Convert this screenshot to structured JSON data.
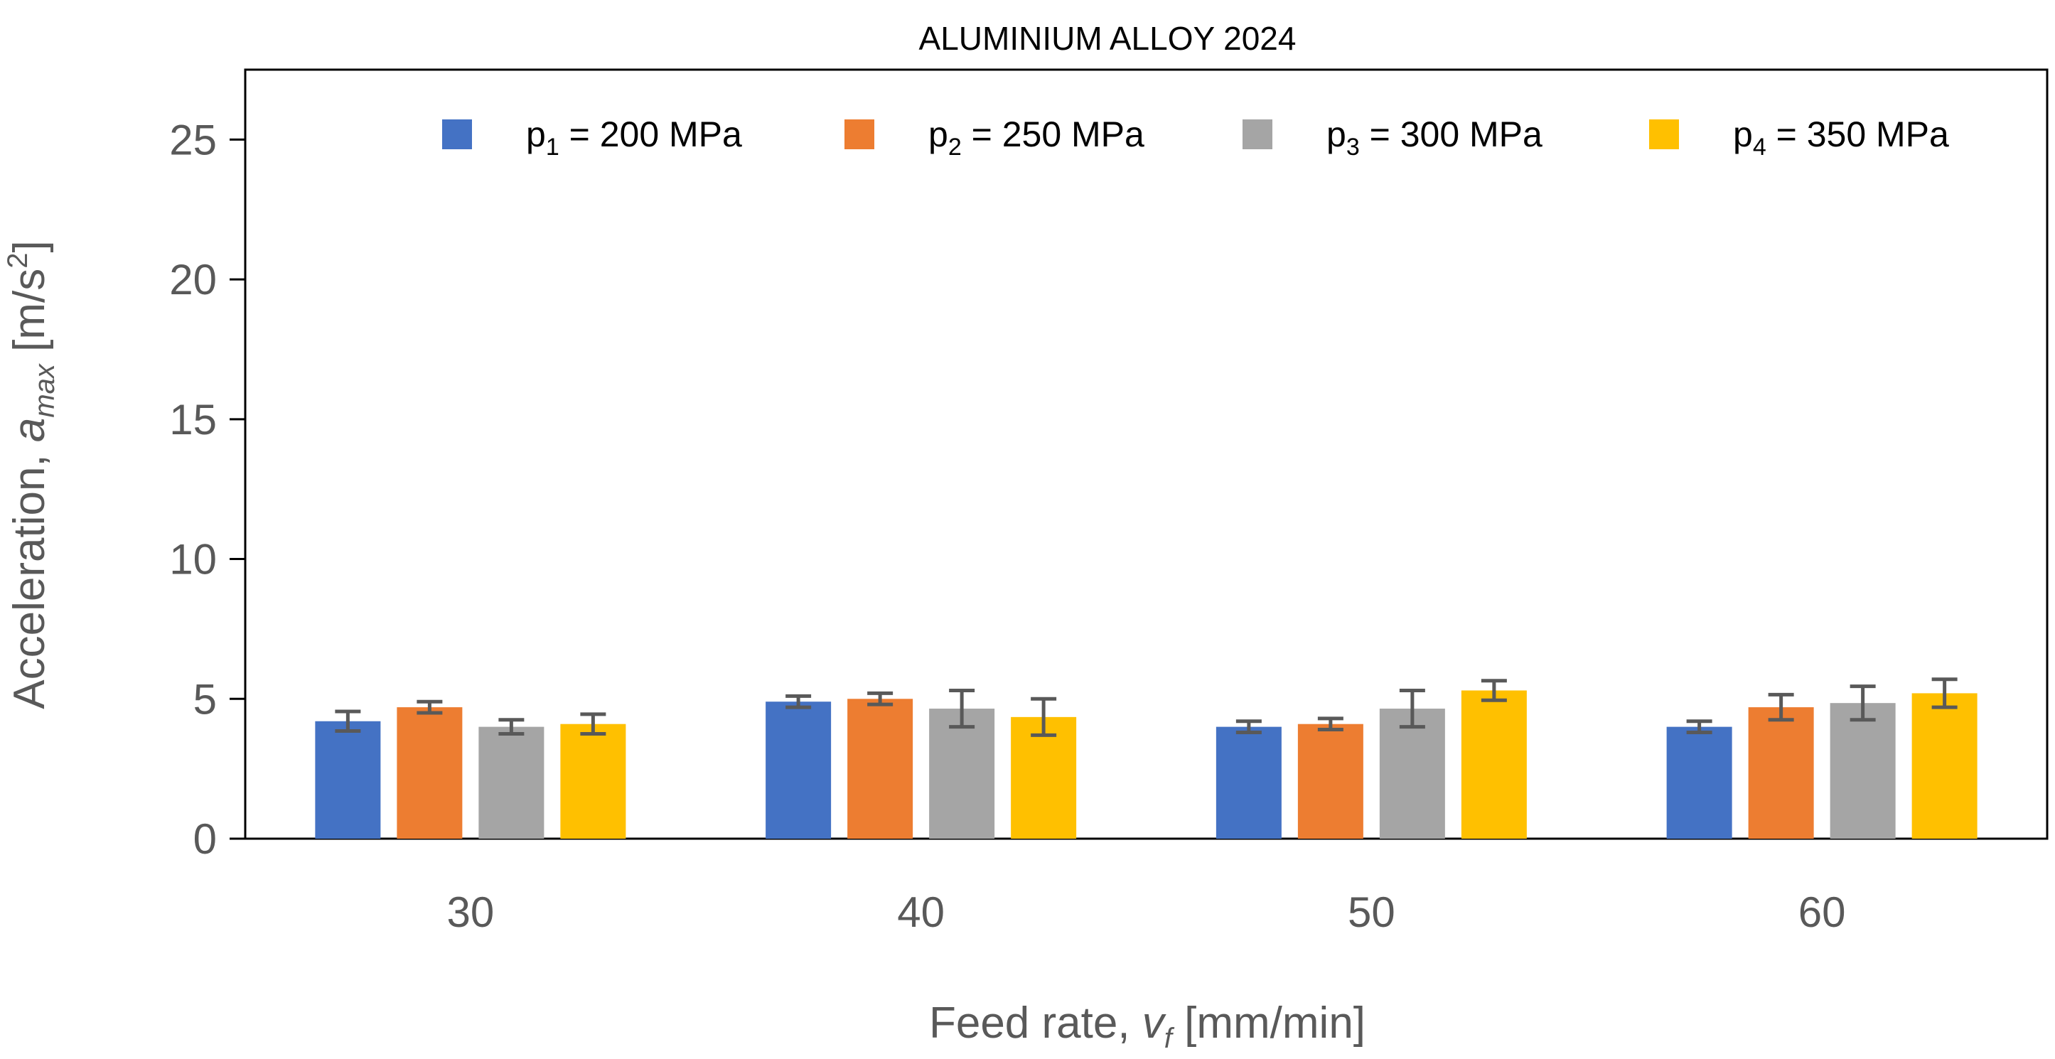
{
  "chart_data": {
    "type": "bar",
    "title": "ALUMINIUM ALLOY 2024",
    "xlabel": {
      "prefix": "Feed rate, ",
      "var": "v",
      "var_sub": "f",
      "suffix": " [mm/min]"
    },
    "ylabel": {
      "prefix": "Acceleration, ",
      "var": "a",
      "var_sub": "max",
      "suffix_a": " [m/s",
      "suffix_sup": "2",
      "suffix_b": "]"
    },
    "categories": [
      "30",
      "40",
      "50",
      "60"
    ],
    "ylim": [
      0,
      27.5
    ],
    "yticks": [
      0,
      5,
      10,
      15,
      20,
      25
    ],
    "grid": false,
    "legend_position": "top",
    "series": [
      {
        "name": "p1 = 200 MPa",
        "legend": {
          "base": "p",
          "sub": "1",
          "rest": " = 200 MPa"
        },
        "color": "#4472C4",
        "values": [
          4.2,
          4.9,
          4.0,
          4.0
        ],
        "errors": [
          0.35,
          0.2,
          0.2,
          0.2
        ]
      },
      {
        "name": "p2 = 250 MPa",
        "legend": {
          "base": "p",
          "sub": "2",
          "rest": " = 250 MPa"
        },
        "color": "#ED7D31",
        "values": [
          4.7,
          5.0,
          4.1,
          4.7
        ],
        "errors": [
          0.2,
          0.2,
          0.2,
          0.45
        ]
      },
      {
        "name": "p3 = 300 MPa",
        "legend": {
          "base": "p",
          "sub": "3",
          "rest": " = 300 MPa"
        },
        "color": "#A5A5A5",
        "values": [
          4.0,
          4.65,
          4.65,
          4.85
        ],
        "errors": [
          0.25,
          0.65,
          0.65,
          0.6
        ]
      },
      {
        "name": "p4 = 350 MPa",
        "legend": {
          "base": "p",
          "sub": "4",
          "rest": " = 350 MPa"
        },
        "color": "#FFC000",
        "values": [
          4.1,
          4.35,
          5.3,
          5.2
        ],
        "errors": [
          0.35,
          0.65,
          0.35,
          0.5
        ]
      }
    ],
    "colors": {
      "axis": "#000000",
      "error_bar": "#595959",
      "tick_text": "#595959"
    }
  }
}
